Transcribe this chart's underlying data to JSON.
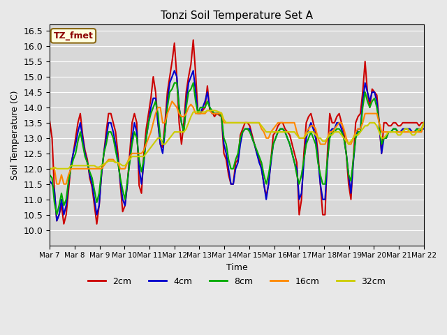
{
  "title": "Tonzi Soil Temperature Set A",
  "xlabel": "Time",
  "ylabel": "Soil Temperature (C)",
  "ylim": [
    9.5,
    16.7
  ],
  "yticks": [
    10.0,
    10.5,
    11.0,
    11.5,
    12.0,
    12.5,
    13.0,
    13.5,
    14.0,
    14.5,
    15.0,
    15.5,
    16.0,
    16.5
  ],
  "legend_label": "TZ_fmet",
  "series_labels": [
    "2cm",
    "4cm",
    "8cm",
    "16cm",
    "32cm"
  ],
  "series_colors": [
    "#cc0000",
    "#0000cc",
    "#00aa00",
    "#ff8800",
    "#cccc00"
  ],
  "background_color": "#e8e8e8",
  "plot_bg_color": "#d8d8d8",
  "x_tick_labels": [
    "Mar 7",
    "Mar 8",
    "Mar 9",
    "Mar 10",
    "Mar 11",
    "Mar 12",
    "Mar 13",
    "Mar 14",
    "Mar 15",
    "Mar 16",
    "Mar 17",
    "Mar 18",
    "Mar 19",
    "Mar 20",
    "Mar 21",
    "Mar 22"
  ],
  "n_points": 160,
  "linewidth": 1.5,
  "2cm": [
    13.55,
    13.0,
    11.3,
    10.3,
    10.5,
    10.8,
    10.2,
    10.5,
    11.3,
    12.1,
    12.5,
    13.0,
    13.5,
    13.8,
    13.1,
    12.6,
    12.3,
    11.7,
    11.4,
    10.8,
    10.2,
    10.8,
    11.8,
    12.5,
    13.2,
    13.8,
    13.8,
    13.5,
    13.2,
    12.5,
    11.5,
    10.6,
    10.8,
    11.5,
    12.5,
    13.5,
    13.8,
    13.5,
    11.45,
    11.2,
    12.5,
    13.3,
    13.8,
    14.3,
    15.0,
    14.5,
    13.5,
    12.8,
    12.7,
    13.5,
    14.5,
    15.0,
    15.5,
    16.1,
    15.0,
    13.5,
    12.8,
    13.5,
    14.5,
    15.0,
    15.4,
    16.2,
    15.1,
    13.8,
    13.8,
    13.9,
    14.0,
    14.7,
    13.9,
    13.85,
    13.7,
    13.8,
    13.75,
    13.7,
    12.5,
    12.3,
    11.8,
    11.5,
    11.5,
    12.2,
    12.3,
    13.1,
    13.3,
    13.5,
    13.5,
    13.4,
    13.1,
    12.8,
    12.5,
    12.3,
    12.0,
    11.5,
    11.1,
    11.5,
    12.3,
    13.1,
    13.2,
    13.4,
    13.5,
    13.5,
    13.3,
    13.2,
    13.1,
    12.8,
    12.5,
    12.2,
    10.5,
    11.0,
    12.5,
    13.5,
    13.7,
    13.8,
    13.5,
    13.2,
    12.5,
    11.5,
    10.5,
    10.5,
    12.5,
    13.8,
    13.5,
    13.5,
    13.7,
    13.8,
    13.5,
    13.2,
    12.5,
    11.5,
    11.0,
    12.3,
    13.5,
    13.7,
    13.8,
    14.5,
    15.5,
    14.5,
    14.0,
    14.6,
    14.5,
    14.4,
    13.5,
    12.5,
    13.5,
    13.5,
    13.4,
    13.4,
    13.5,
    13.5,
    13.4,
    13.4,
    13.5,
    13.5,
    13.5,
    13.5,
    13.5,
    13.5,
    13.5,
    13.4,
    13.5,
    13.5
  ],
  "4cm": [
    11.6,
    11.5,
    11.3,
    10.3,
    10.5,
    11.0,
    10.5,
    10.8,
    11.5,
    12.1,
    12.5,
    12.8,
    13.2,
    13.5,
    13.0,
    12.5,
    12.2,
    11.8,
    11.5,
    11.0,
    10.5,
    10.8,
    11.8,
    12.5,
    13.0,
    13.5,
    13.5,
    13.2,
    12.8,
    12.3,
    11.6,
    11.0,
    10.8,
    11.5,
    12.3,
    13.0,
    13.5,
    13.2,
    12.0,
    11.5,
    12.2,
    13.0,
    13.5,
    14.0,
    14.3,
    14.3,
    13.5,
    12.8,
    12.5,
    13.2,
    14.2,
    14.8,
    15.0,
    15.2,
    15.0,
    14.0,
    13.5,
    13.2,
    14.2,
    14.8,
    15.0,
    15.2,
    14.5,
    13.8,
    13.8,
    14.0,
    14.2,
    14.5,
    14.0,
    13.8,
    13.8,
    13.8,
    13.8,
    13.7,
    12.8,
    12.5,
    12.0,
    11.5,
    11.5,
    12.0,
    12.2,
    12.8,
    13.2,
    13.3,
    13.3,
    13.3,
    13.0,
    12.8,
    12.5,
    12.2,
    12.0,
    11.5,
    11.0,
    11.5,
    12.2,
    12.8,
    13.0,
    13.2,
    13.3,
    13.3,
    13.2,
    13.0,
    12.8,
    12.5,
    12.2,
    12.0,
    11.0,
    11.2,
    12.2,
    13.0,
    13.3,
    13.5,
    13.3,
    13.0,
    12.3,
    11.5,
    11.0,
    11.0,
    12.2,
    13.2,
    13.3,
    13.3,
    13.5,
    13.5,
    13.3,
    13.0,
    12.5,
    11.8,
    11.2,
    12.2,
    13.0,
    13.3,
    13.3,
    14.2,
    14.8,
    14.5,
    14.2,
    14.5,
    14.5,
    14.2,
    13.5,
    12.5,
    13.0,
    13.0,
    13.2,
    13.2,
    13.3,
    13.3,
    13.2,
    13.2,
    13.3,
    13.3,
    13.3,
    13.3,
    13.2,
    13.2,
    13.3,
    13.3,
    13.3,
    13.3
  ],
  "8cm": [
    11.8,
    11.7,
    10.9,
    10.5,
    10.8,
    11.2,
    10.8,
    11.0,
    11.6,
    12.0,
    12.3,
    12.5,
    12.9,
    13.2,
    12.8,
    12.4,
    12.2,
    11.9,
    11.7,
    11.3,
    10.9,
    11.2,
    11.9,
    12.5,
    12.8,
    13.2,
    13.2,
    13.0,
    12.6,
    12.2,
    11.7,
    11.3,
    11.0,
    11.6,
    12.2,
    12.8,
    13.2,
    13.0,
    12.3,
    11.9,
    12.3,
    13.0,
    13.5,
    13.8,
    14.0,
    14.2,
    13.8,
    13.0,
    12.8,
    13.2,
    14.0,
    14.5,
    14.6,
    14.8,
    14.8,
    14.0,
    13.5,
    13.2,
    14.0,
    14.5,
    14.6,
    14.8,
    14.2,
    13.8,
    14.0,
    14.0,
    14.0,
    14.2,
    14.0,
    13.9,
    13.8,
    13.8,
    13.8,
    13.7,
    13.0,
    12.8,
    12.3,
    12.0,
    12.0,
    12.3,
    12.5,
    13.0,
    13.2,
    13.3,
    13.3,
    13.2,
    13.0,
    12.8,
    12.6,
    12.4,
    12.2,
    11.8,
    11.5,
    11.8,
    12.3,
    12.8,
    13.0,
    13.2,
    13.3,
    13.3,
    13.2,
    13.0,
    12.8,
    12.5,
    12.2,
    11.8,
    11.5,
    11.8,
    12.3,
    12.8,
    13.0,
    13.2,
    13.0,
    12.8,
    12.2,
    11.8,
    11.5,
    11.5,
    12.3,
    13.0,
    13.2,
    13.2,
    13.3,
    13.3,
    13.2,
    13.0,
    12.5,
    11.8,
    11.6,
    12.3,
    13.0,
    13.2,
    13.2,
    14.0,
    14.5,
    14.2,
    14.0,
    14.2,
    14.3,
    14.0,
    13.5,
    12.8,
    13.0,
    13.0,
    13.2,
    13.2,
    13.3,
    13.3,
    13.2,
    13.2,
    13.2,
    13.3,
    13.3,
    13.2,
    13.2,
    13.2,
    13.3,
    13.2,
    13.3,
    13.5
  ],
  "16cm": [
    12.0,
    12.0,
    12.0,
    11.5,
    11.5,
    11.8,
    11.5,
    11.5,
    11.8,
    12.0,
    12.0,
    12.0,
    12.0,
    12.0,
    12.0,
    12.0,
    12.0,
    12.0,
    12.0,
    12.0,
    12.0,
    12.0,
    12.0,
    12.1,
    12.2,
    12.3,
    12.3,
    12.3,
    12.2,
    12.2,
    12.0,
    12.0,
    12.0,
    12.2,
    12.4,
    12.5,
    12.5,
    12.5,
    12.5,
    12.5,
    12.6,
    12.8,
    13.0,
    13.2,
    13.5,
    13.8,
    14.0,
    14.0,
    13.5,
    13.5,
    13.8,
    14.0,
    14.2,
    14.1,
    14.0,
    13.8,
    13.7,
    13.7,
    13.8,
    14.0,
    14.1,
    14.0,
    13.8,
    13.8,
    13.8,
    13.8,
    13.8,
    13.9,
    13.9,
    13.8,
    13.8,
    13.8,
    13.8,
    13.8,
    13.5,
    13.5,
    13.5,
    13.5,
    13.5,
    13.5,
    13.5,
    13.5,
    13.5,
    13.5,
    13.5,
    13.5,
    13.5,
    13.5,
    13.5,
    13.5,
    13.3,
    13.2,
    13.0,
    13.0,
    13.2,
    13.3,
    13.4,
    13.5,
    13.5,
    13.5,
    13.5,
    13.5,
    13.5,
    13.5,
    13.5,
    13.2,
    13.0,
    13.0,
    13.0,
    13.2,
    13.3,
    13.4,
    13.4,
    13.3,
    13.0,
    12.8,
    12.8,
    12.8,
    13.0,
    13.2,
    13.2,
    13.3,
    13.4,
    13.5,
    13.5,
    13.3,
    13.0,
    12.8,
    12.8,
    13.0,
    13.2,
    13.3,
    13.3,
    13.5,
    13.8,
    13.8,
    13.8,
    13.8,
    13.8,
    13.8,
    13.5,
    13.2,
    13.2,
    13.2,
    13.2,
    13.2,
    13.2,
    13.2,
    13.2,
    13.2,
    13.2,
    13.2,
    13.2,
    13.2,
    13.2,
    13.2,
    13.2,
    13.2,
    13.2,
    13.5
  ],
  "32cm": [
    12.0,
    12.0,
    12.05,
    12.0,
    12.0,
    12.0,
    12.0,
    12.0,
    12.0,
    12.1,
    12.1,
    12.1,
    12.1,
    12.1,
    12.1,
    12.1,
    12.1,
    12.1,
    12.1,
    12.1,
    12.05,
    12.05,
    12.1,
    12.15,
    12.2,
    12.25,
    12.25,
    12.25,
    12.2,
    12.2,
    12.15,
    12.1,
    12.1,
    12.2,
    12.3,
    12.4,
    12.4,
    12.4,
    12.4,
    12.4,
    12.4,
    12.5,
    12.6,
    12.7,
    12.8,
    12.9,
    13.0,
    13.0,
    12.8,
    12.8,
    12.9,
    13.0,
    13.1,
    13.2,
    13.2,
    13.2,
    13.2,
    13.2,
    13.3,
    13.5,
    13.7,
    13.85,
    13.85,
    13.85,
    13.85,
    13.85,
    13.85,
    13.9,
    13.9,
    13.9,
    13.9,
    13.88,
    13.85,
    13.82,
    13.6,
    13.5,
    13.5,
    13.5,
    13.5,
    13.5,
    13.5,
    13.5,
    13.5,
    13.5,
    13.5,
    13.5,
    13.5,
    13.5,
    13.5,
    13.5,
    13.4,
    13.3,
    13.2,
    13.2,
    13.2,
    13.2,
    13.2,
    13.2,
    13.2,
    13.2,
    13.2,
    13.2,
    13.2,
    13.2,
    13.2,
    13.1,
    13.0,
    13.0,
    13.0,
    13.1,
    13.2,
    13.2,
    13.2,
    13.1,
    13.0,
    13.0,
    12.9,
    12.9,
    13.0,
    13.1,
    13.1,
    13.2,
    13.2,
    13.2,
    13.1,
    13.0,
    12.9,
    12.8,
    12.9,
    13.0,
    13.1,
    13.1,
    13.2,
    13.3,
    13.4,
    13.4,
    13.5,
    13.5,
    13.5,
    13.4,
    13.2,
    13.0,
    13.0,
    13.1,
    13.2,
    13.2,
    13.2,
    13.2,
    13.1,
    13.1,
    13.2,
    13.3,
    13.3,
    13.2,
    13.1,
    13.1,
    13.2,
    13.3,
    13.3,
    13.5
  ]
}
